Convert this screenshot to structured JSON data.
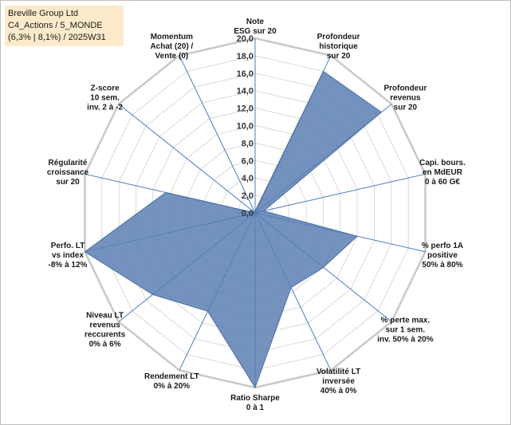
{
  "header": {
    "line1": "Breville Group Ltd",
    "line2": "C4_Actions / 5_MONDE",
    "line3": "(6,3% | 8,1%) / 2025W31"
  },
  "chart_data": {
    "type": "radar",
    "rmax": 20,
    "step": 2,
    "tick_labels": [
      "0,0",
      "2,0",
      "4,0",
      "6,0",
      "8,0",
      "10,0",
      "12,0",
      "14,0",
      "16,0",
      "18,0",
      "20,0"
    ],
    "axes": [
      {
        "label": [
          "Note",
          "ESG sur 20"
        ],
        "value": 0.2
      },
      {
        "label": [
          "Profondeur",
          "historique",
          "sur 20"
        ],
        "value": 18
      },
      {
        "label": [
          "Profondeur",
          "revenus",
          "sur 20"
        ],
        "value": 18.5
      },
      {
        "label": [
          "Capi. bours.",
          "en MdEUR",
          "0 à 60 G€"
        ],
        "value": 1
      },
      {
        "label": [
          "% perfo 1A",
          "positive",
          "50% à 80%"
        ],
        "value": 12
      },
      {
        "label": [
          "% perte max.",
          "sur 1 sem.",
          "inv. 50% à 20%"
        ],
        "value": 10
      },
      {
        "label": [
          "Volatilité LT",
          "inversée",
          "40% à 0%"
        ],
        "value": 9.5
      },
      {
        "label": [
          "Ratio Sharpe",
          "0 à 1"
        ],
        "value": 20
      },
      {
        "label": [
          "Rendement LT",
          "0% à 20%"
        ],
        "value": 12.5
      },
      {
        "label": [
          "Niveau LT",
          "revenus",
          "reccurents",
          "0% à 6%"
        ],
        "value": 15
      },
      {
        "label": [
          "Perfo. LT",
          "vs index",
          "-8% à 12%"
        ],
        "value": 20
      },
      {
        "label": [
          "Régularité",
          "croissance",
          "sur 20"
        ],
        "value": 10.5
      },
      {
        "label": [
          "Z-score",
          "10 sem.",
          "inv. 2 à -2"
        ],
        "value": 0
      },
      {
        "label": [
          "Momentum",
          "Achat (20) /",
          "Vente (0)"
        ],
        "value": 0
      }
    ],
    "colors": {
      "fill": "#5b7fb3",
      "stroke": "#4a6fa5",
      "spokes": "#4a7cc4",
      "grid": "#d9d9d9",
      "outer": "#c8c8c8"
    }
  }
}
